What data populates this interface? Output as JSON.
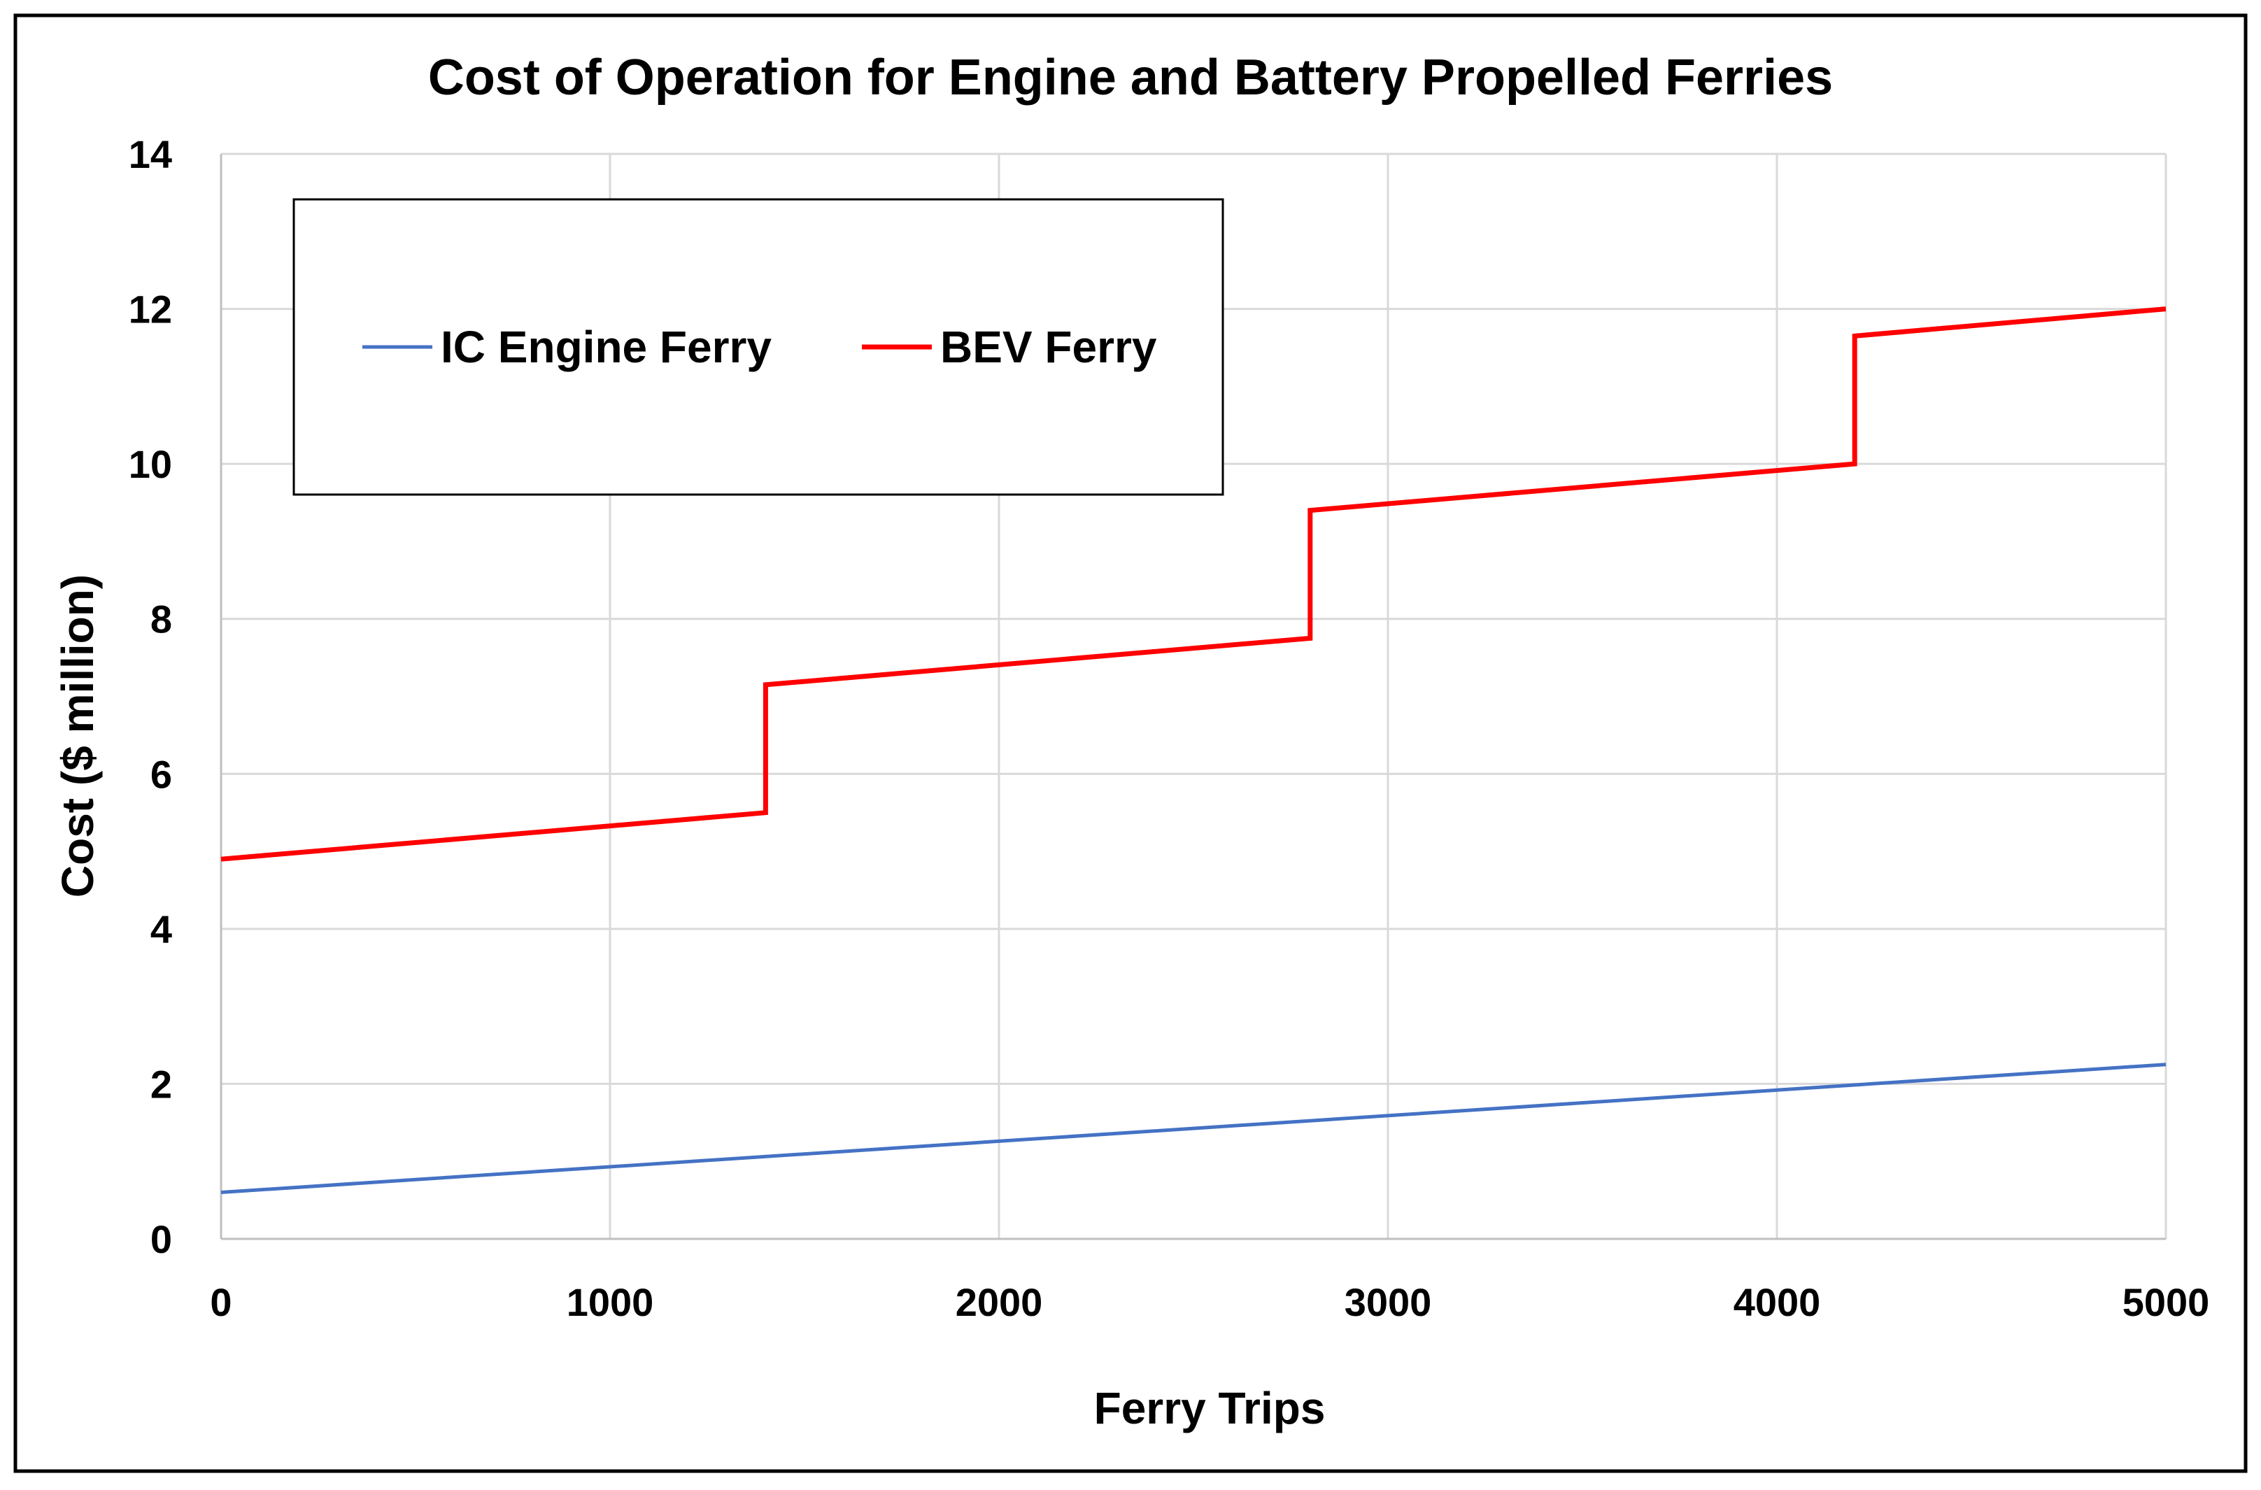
{
  "chart_data": {
    "type": "line",
    "title": "Cost of Operation for Engine and Battery Propelled Ferries",
    "xlabel": "Ferry Trips",
    "ylabel": "Cost ($ million)",
    "xlim": [
      0,
      5000
    ],
    "ylim": [
      0,
      14
    ],
    "x_ticks": [
      0,
      1000,
      2000,
      3000,
      4000,
      5000
    ],
    "y_ticks": [
      0,
      2,
      4,
      6,
      8,
      10,
      12,
      14
    ],
    "grid": true,
    "legend_position": "top-left",
    "series": [
      {
        "name": "IC Engine Ferry",
        "color": "#4472C4",
        "x": [
          0,
          5000
        ],
        "y": [
          0.6,
          2.25
        ]
      },
      {
        "name": "BEV Ferry",
        "color": "#FF0000",
        "x": [
          0,
          1400,
          1400,
          2800,
          2800,
          4200,
          4200,
          5000
        ],
        "y": [
          4.9,
          5.5,
          7.15,
          7.75,
          9.4,
          10.0,
          11.65,
          12.0
        ]
      }
    ]
  }
}
